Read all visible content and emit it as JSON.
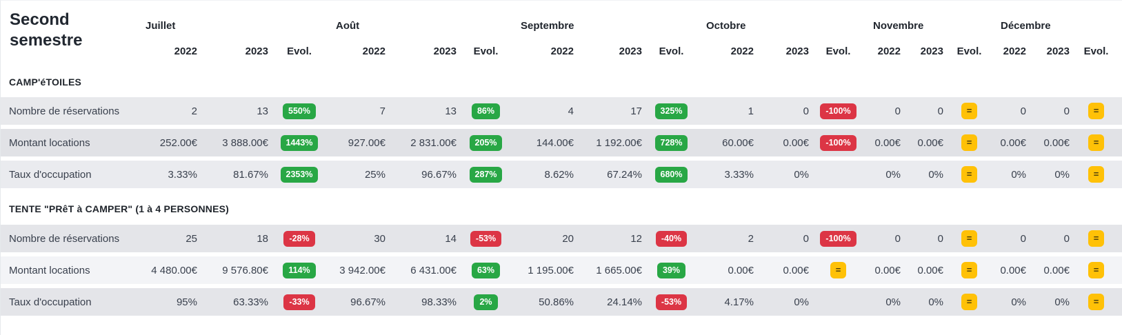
{
  "title": "Second semestre",
  "columns": {
    "months": [
      "Juillet",
      "Août",
      "Septembre",
      "Octobre",
      "Novembre",
      "Décembre"
    ],
    "year_headers": [
      "2022",
      "2023",
      "Evol."
    ]
  },
  "colors": {
    "positive_badge": "#28a745",
    "negative_badge": "#dc3545",
    "neutral_badge": "#ffc107",
    "text": "#39404d",
    "header_text": "#21262e"
  },
  "sections": [
    {
      "title": "CAMP'éTOILES",
      "rows": [
        {
          "label": "Nombre de réservations",
          "cells": [
            {
              "y2022": "2",
              "y2023": "13",
              "evol": "550%",
              "trend": "up"
            },
            {
              "y2022": "7",
              "y2023": "13",
              "evol": "86%",
              "trend": "up"
            },
            {
              "y2022": "4",
              "y2023": "17",
              "evol": "325%",
              "trend": "up"
            },
            {
              "y2022": "1",
              "y2023": "0",
              "evol": "-100%",
              "trend": "down"
            },
            {
              "y2022": "0",
              "y2023": "0",
              "evol": "=",
              "trend": "eq"
            },
            {
              "y2022": "0",
              "y2023": "0",
              "evol": "=",
              "trend": "eq"
            }
          ]
        },
        {
          "label": "Montant locations",
          "cells": [
            {
              "y2022": "252.00€",
              "y2023": "3 888.00€",
              "evol": "1443%",
              "trend": "up"
            },
            {
              "y2022": "927.00€",
              "y2023": "2 831.00€",
              "evol": "205%",
              "trend": "up"
            },
            {
              "y2022": "144.00€",
              "y2023": "1 192.00€",
              "evol": "728%",
              "trend": "up"
            },
            {
              "y2022": "60.00€",
              "y2023": "0.00€",
              "evol": "-100%",
              "trend": "down"
            },
            {
              "y2022": "0.00€",
              "y2023": "0.00€",
              "evol": "=",
              "trend": "eq"
            },
            {
              "y2022": "0.00€",
              "y2023": "0.00€",
              "evol": "=",
              "trend": "eq"
            }
          ]
        },
        {
          "label": "Taux d'occupation",
          "cells": [
            {
              "y2022": "3.33%",
              "y2023": "81.67%",
              "evol": "2353%",
              "trend": "up"
            },
            {
              "y2022": "25%",
              "y2023": "96.67%",
              "evol": "287%",
              "trend": "up"
            },
            {
              "y2022": "8.62%",
              "y2023": "67.24%",
              "evol": "680%",
              "trend": "up"
            },
            {
              "y2022": "3.33%",
              "y2023": "0%",
              "evol": "",
              "trend": "none"
            },
            {
              "y2022": "0%",
              "y2023": "0%",
              "evol": "=",
              "trend": "eq"
            },
            {
              "y2022": "0%",
              "y2023": "0%",
              "evol": "=",
              "trend": "eq"
            }
          ]
        }
      ]
    },
    {
      "title": "TENTE \"PRêT à CAMPER\" (1 à 4 PERSONNES)",
      "rows": [
        {
          "label": "Nombre de réservations",
          "cells": [
            {
              "y2022": "25",
              "y2023": "18",
              "evol": "-28%",
              "trend": "down"
            },
            {
              "y2022": "30",
              "y2023": "14",
              "evol": "-53%",
              "trend": "down"
            },
            {
              "y2022": "20",
              "y2023": "12",
              "evol": "-40%",
              "trend": "down"
            },
            {
              "y2022": "2",
              "y2023": "0",
              "evol": "-100%",
              "trend": "down"
            },
            {
              "y2022": "0",
              "y2023": "0",
              "evol": "=",
              "trend": "eq"
            },
            {
              "y2022": "0",
              "y2023": "0",
              "evol": "=",
              "trend": "eq"
            }
          ]
        },
        {
          "label": "Montant locations",
          "cells": [
            {
              "y2022": "4 480.00€",
              "y2023": "9 576.80€",
              "evol": "114%",
              "trend": "up"
            },
            {
              "y2022": "3 942.00€",
              "y2023": "6 431.00€",
              "evol": "63%",
              "trend": "up"
            },
            {
              "y2022": "1 195.00€",
              "y2023": "1 665.00€",
              "evol": "39%",
              "trend": "up"
            },
            {
              "y2022": "0.00€",
              "y2023": "0.00€",
              "evol": "=",
              "trend": "eq"
            },
            {
              "y2022": "0.00€",
              "y2023": "0.00€",
              "evol": "=",
              "trend": "eq"
            },
            {
              "y2022": "0.00€",
              "y2023": "0.00€",
              "evol": "=",
              "trend": "eq"
            }
          ]
        },
        {
          "label": "Taux d'occupation",
          "cells": [
            {
              "y2022": "95%",
              "y2023": "63.33%",
              "evol": "-33%",
              "trend": "down"
            },
            {
              "y2022": "96.67%",
              "y2023": "98.33%",
              "evol": "2%",
              "trend": "up"
            },
            {
              "y2022": "50.86%",
              "y2023": "24.14%",
              "evol": "-53%",
              "trend": "down"
            },
            {
              "y2022": "4.17%",
              "y2023": "0%",
              "evol": "",
              "trend": "none"
            },
            {
              "y2022": "0%",
              "y2023": "0%",
              "evol": "=",
              "trend": "eq"
            },
            {
              "y2022": "0%",
              "y2023": "0%",
              "evol": "=",
              "trend": "eq"
            }
          ]
        }
      ]
    }
  ]
}
